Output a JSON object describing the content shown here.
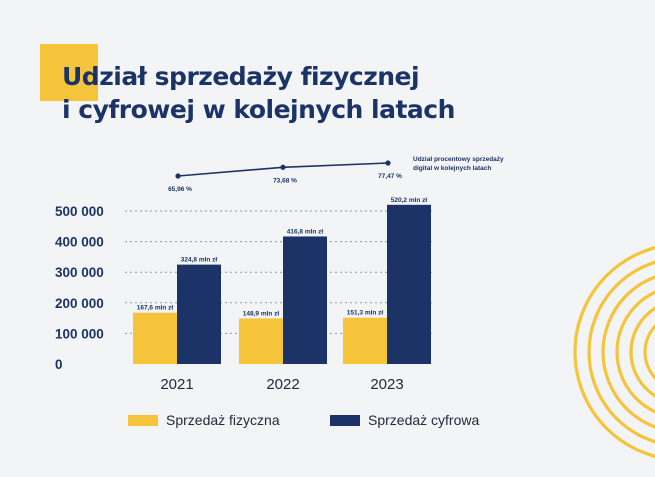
{
  "header": {
    "title_line1": "Udział sprzedaży fizycznej",
    "title_line2": "i cyfrowej w kolejnych latach"
  },
  "colors": {
    "physical": "#f5c43a",
    "digital": "#1b3366",
    "accent": "#f5c43a",
    "text": "#1b3366"
  },
  "chart_data": [
    {
      "type": "bar",
      "categories": [
        "2021",
        "2022",
        "2023"
      ],
      "series": [
        {
          "name": "Sprzedaż fizyczna",
          "values": [
            167.6,
            148.9,
            151.3
          ],
          "labels": [
            "167,6 mln zł",
            "148,9 mln zł",
            "151,3 mln zł"
          ]
        },
        {
          "name": "Sprzedaż cyfrowa",
          "values": [
            324.8,
            416.8,
            520.2
          ],
          "labels": [
            "324,8 mln zł",
            "416,8 mln zł",
            "520,2 mln zł"
          ]
        }
      ],
      "yticks": [
        "0",
        "100 000",
        "200 000",
        "300 000",
        "400 000",
        "500 000"
      ],
      "ylim": [
        0,
        500
      ],
      "grid": "dotted horizontal",
      "legend_position": "bottom"
    },
    {
      "type": "line",
      "x": [
        "2021",
        "2022",
        "2023"
      ],
      "values": [
        65.96,
        73.68,
        77.47
      ],
      "labels": [
        "65,96 %",
        "73,68 %",
        "77,47 %"
      ],
      "annotation_line1": "Udział procentowy sprzedaży",
      "annotation_line2": "digital w kolejnych latach"
    }
  ]
}
